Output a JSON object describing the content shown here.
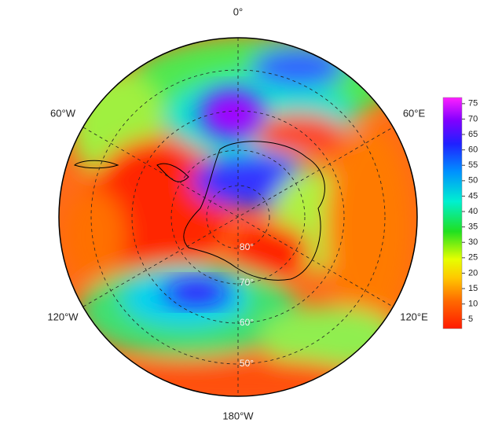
{
  "map": {
    "meridian_labels": [
      "0°",
      "60°W",
      "60°E",
      "120°W",
      "120°E",
      "180°W"
    ],
    "latitude_labels": [
      "80°",
      "70°",
      "60°",
      "50°"
    ],
    "colorbar": {
      "ticks": [
        5,
        10,
        15,
        20,
        25,
        30,
        35,
        40,
        45,
        50,
        55,
        60,
        65,
        70,
        75
      ],
      "range": [
        2,
        77
      ]
    }
  }
}
